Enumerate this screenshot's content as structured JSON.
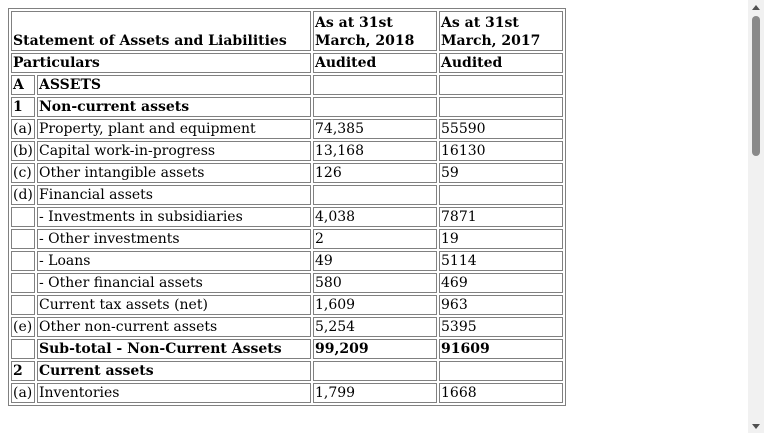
{
  "header": {
    "title": "Statement of Assets and Liabilities",
    "col_2018": "As at 31st March, 2018",
    "col_2017": "As at 31st March, 2017"
  },
  "subheader": {
    "particulars": "Particulars",
    "audited_2018": "Audited",
    "audited_2017": "Audited"
  },
  "rows": [
    {
      "code": "A",
      "label": "ASSETS",
      "v2018": "",
      "v2017": "",
      "bold": true
    },
    {
      "code": "1",
      "label": "Non-current assets",
      "v2018": "",
      "v2017": "",
      "bold": true
    },
    {
      "code": "(a)",
      "label": "Property, plant and equipment",
      "v2018": "74,385",
      "v2017": "55590",
      "bold": false
    },
    {
      "code": "(b)",
      "label": "Capital work-in-progress",
      "v2018": "13,168",
      "v2017": "16130",
      "bold": false
    },
    {
      "code": "(c)",
      "label": "Other intangible assets",
      "v2018": "126",
      "v2017": "59",
      "bold": false
    },
    {
      "code": "(d)",
      "label": "Financial assets",
      "v2018": "",
      "v2017": "",
      "bold": false
    },
    {
      "code": "",
      "label": "- Investments in subsidiaries",
      "v2018": "4,038",
      "v2017": "7871",
      "bold": false
    },
    {
      "code": "",
      "label": "- Other investments",
      "v2018": "2",
      "v2017": "19",
      "bold": false
    },
    {
      "code": "",
      "label": "- Loans",
      "v2018": "49",
      "v2017": "5114",
      "bold": false
    },
    {
      "code": "",
      "label": "- Other financial assets",
      "v2018": "580",
      "v2017": "469",
      "bold": false
    },
    {
      "code": "",
      "label": "Current tax assets (net)",
      "v2018": "1,609",
      "v2017": "963",
      "bold": false
    },
    {
      "code": "(e)",
      "label": "Other non-current assets",
      "v2018": "5,254",
      "v2017": "5395",
      "bold": false
    },
    {
      "code": "",
      "label": "Sub-total - Non-Current Assets",
      "v2018": "99,209",
      "v2017": "91609",
      "bold": true
    },
    {
      "code": "2",
      "label": "Current assets",
      "v2018": "",
      "v2017": "",
      "bold": true
    },
    {
      "code": "(a)",
      "label": "Inventories",
      "v2018": "1,799",
      "v2017": "1668",
      "bold": false
    }
  ]
}
